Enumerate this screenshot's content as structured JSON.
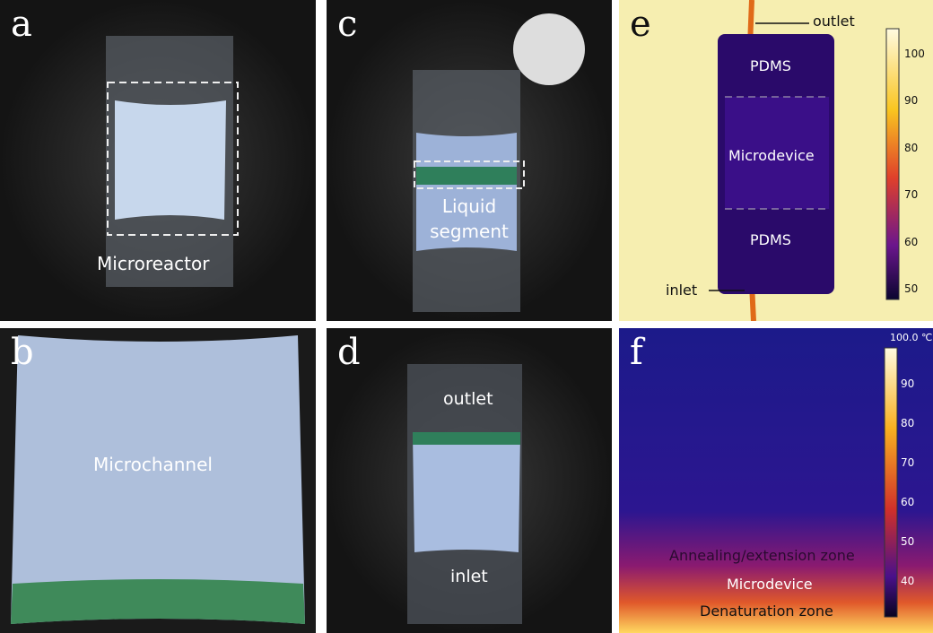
{
  "panels": [
    {
      "letter": "a",
      "labels": [
        "Microreactor"
      ]
    },
    {
      "letter": "b",
      "labels": [
        "Microchannel"
      ]
    },
    {
      "letter": "c",
      "labels": [
        "Liquid segment"
      ]
    },
    {
      "letter": "d",
      "labels": [
        "outlet",
        "inlet"
      ]
    },
    {
      "letter": "e",
      "labels": [
        "outlet",
        "PDMS",
        "Microdevice",
        "PDMS",
        "inlet"
      ],
      "colorbar_ticks": [
        100,
        90,
        80,
        70,
        60,
        50
      ]
    },
    {
      "letter": "f",
      "labels": [
        "Annealing/extension zone",
        "Microdevice",
        "Denaturation zone"
      ],
      "colorbar_top": "100.0 ℃",
      "colorbar_ticks": [
        90,
        80,
        70,
        60,
        50,
        40
      ]
    }
  ]
}
